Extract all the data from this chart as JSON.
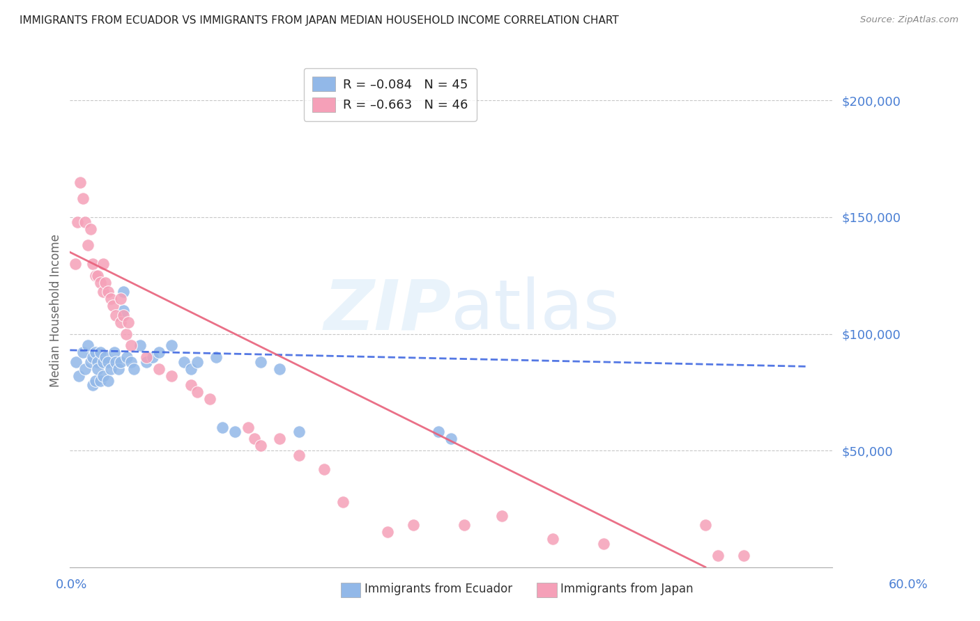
{
  "title": "IMMIGRANTS FROM ECUADOR VS IMMIGRANTS FROM JAPAN MEDIAN HOUSEHOLD INCOME CORRELATION CHART",
  "source": "Source: ZipAtlas.com",
  "ylabel": "Median Household Income",
  "xlim": [
    0.0,
    0.6
  ],
  "ylim": [
    0,
    220000
  ],
  "ecuador_color": "#92b8e8",
  "japan_color": "#f5a0b8",
  "ecuador_line_color": "#4169e1",
  "japan_line_color": "#e8607a",
  "legend_labels": [
    "R = –0.084   N = 45",
    "R = –0.663   N = 46"
  ],
  "ecuador_scatter_x": [
    0.005,
    0.007,
    0.01,
    0.012,
    0.014,
    0.016,
    0.018,
    0.018,
    0.02,
    0.02,
    0.022,
    0.022,
    0.024,
    0.024,
    0.026,
    0.026,
    0.028,
    0.03,
    0.03,
    0.032,
    0.035,
    0.036,
    0.038,
    0.04,
    0.042,
    0.042,
    0.045,
    0.048,
    0.05,
    0.055,
    0.06,
    0.065,
    0.07,
    0.08,
    0.09,
    0.095,
    0.1,
    0.115,
    0.12,
    0.13,
    0.15,
    0.165,
    0.18,
    0.29,
    0.3
  ],
  "ecuador_scatter_y": [
    88000,
    82000,
    92000,
    85000,
    95000,
    88000,
    90000,
    78000,
    92000,
    80000,
    88000,
    85000,
    92000,
    80000,
    88000,
    82000,
    90000,
    88000,
    80000,
    85000,
    92000,
    88000,
    85000,
    88000,
    118000,
    110000,
    90000,
    88000,
    85000,
    95000,
    88000,
    90000,
    92000,
    95000,
    88000,
    85000,
    88000,
    90000,
    60000,
    58000,
    88000,
    85000,
    58000,
    58000,
    55000
  ],
  "japan_scatter_x": [
    0.004,
    0.006,
    0.008,
    0.01,
    0.012,
    0.014,
    0.016,
    0.018,
    0.02,
    0.022,
    0.024,
    0.026,
    0.026,
    0.028,
    0.03,
    0.032,
    0.034,
    0.036,
    0.04,
    0.04,
    0.042,
    0.044,
    0.046,
    0.048,
    0.06,
    0.07,
    0.08,
    0.095,
    0.1,
    0.11,
    0.14,
    0.145,
    0.15,
    0.165,
    0.18,
    0.2,
    0.215,
    0.25,
    0.27,
    0.31,
    0.34,
    0.38,
    0.42,
    0.5,
    0.51,
    0.53
  ],
  "japan_scatter_y": [
    130000,
    148000,
    165000,
    158000,
    148000,
    138000,
    145000,
    130000,
    125000,
    125000,
    122000,
    118000,
    130000,
    122000,
    118000,
    115000,
    112000,
    108000,
    105000,
    115000,
    108000,
    100000,
    105000,
    95000,
    90000,
    85000,
    82000,
    78000,
    75000,
    72000,
    60000,
    55000,
    52000,
    55000,
    48000,
    42000,
    28000,
    15000,
    18000,
    18000,
    22000,
    12000,
    10000,
    18000,
    5000,
    5000
  ],
  "background_color": "#ffffff",
  "grid_color": "#c8c8c8",
  "title_color": "#222222",
  "tick_label_color": "#4a7fd4",
  "yticks": [
    50000,
    100000,
    150000,
    200000
  ],
  "ecuador_line_x": [
    0.0,
    0.58
  ],
  "ecuador_line_y": [
    93000,
    86000
  ],
  "japan_line_x": [
    0.0,
    0.5
  ],
  "japan_line_y": [
    135000,
    0
  ]
}
